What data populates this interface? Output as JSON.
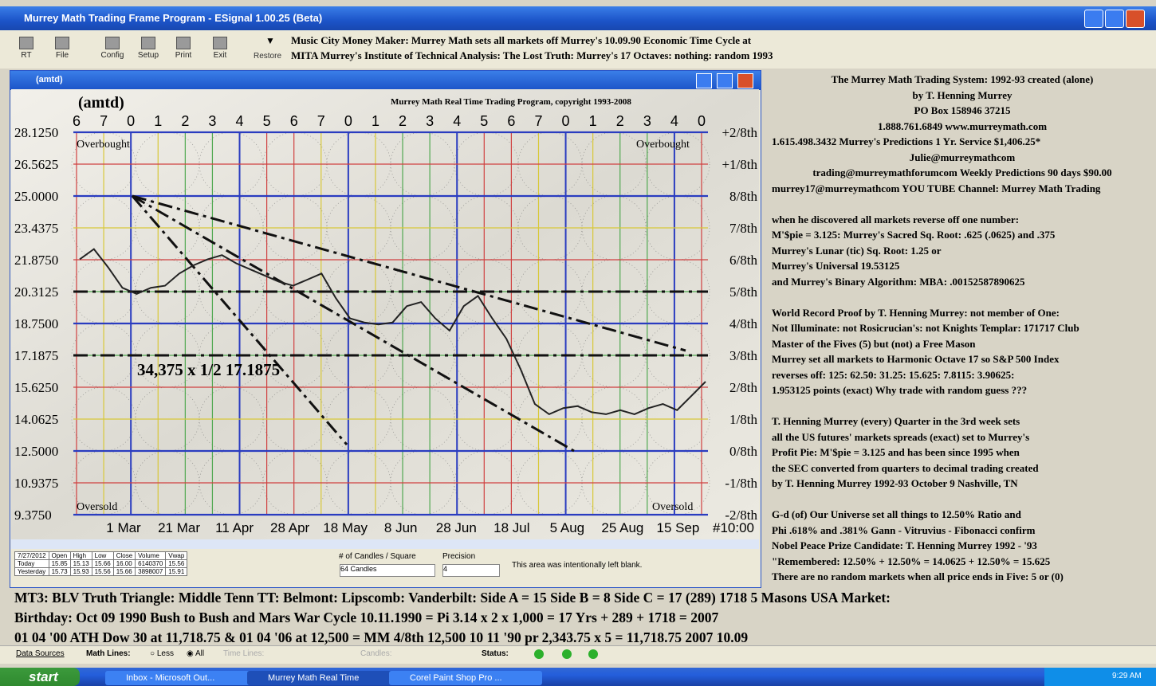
{
  "window": {
    "title": "Murrey Math Trading Frame Program - ESignal 1.00.25 (Beta)"
  },
  "toolbar": {
    "buttons": [
      "RT",
      "File",
      "Config",
      "Setup",
      "Print",
      "Exit"
    ],
    "restore": "Restore",
    "lines": [
      "Music City Money Maker: Murrey Math sets all markets off Murrey's 10.09.90 Economic Time Cycle at",
      "MITA Murrey's Institute of Technical Analysis: The Lost Truth:  Murrey's 17 Octaves: nothing: random 1993"
    ]
  },
  "chart_window": {
    "title": "(amtd)",
    "symbol": "(amtd)",
    "copyright": "Murrey Math Real Time Trading Program, copyright 1993-2008",
    "overbought": "Overbought",
    "oversold": "Oversold",
    "annotation": "34,375 x 1/2 17.1875",
    "cycle_digits": [
      6,
      7,
      0,
      1,
      2,
      3,
      4,
      5,
      6,
      7,
      0,
      1,
      2,
      3,
      4,
      5,
      6,
      7,
      0,
      1,
      2,
      3,
      4,
      0
    ],
    "dates": [
      "1 Mar",
      "21 Mar",
      "11 Apr",
      "28 Apr",
      "18 May",
      "8 Jun",
      "28 Jun",
      "18 Jul",
      "5 Aug",
      "25 Aug",
      "15 Sep",
      "#10:00"
    ],
    "levels": [
      {
        "value": 28.125,
        "label": "28.1250",
        "octave": "+2/8th",
        "color": "#2a3cc0"
      },
      {
        "value": 26.5625,
        "label": "26.5625",
        "octave": "+1/8th",
        "color": "#d04040"
      },
      {
        "value": 25.0,
        "label": "25.0000",
        "octave": "8/8th",
        "color": "#2a3cc0"
      },
      {
        "value": 23.4375,
        "label": "23.4375",
        "octave": "7/8th",
        "color": "#d8c838"
      },
      {
        "value": 21.875,
        "label": "21.8750",
        "octave": "6/8th",
        "color": "#d04040"
      },
      {
        "value": 20.3125,
        "label": "20.3125",
        "octave": "5/8th",
        "color": "#50a850"
      },
      {
        "value": 18.75,
        "label": "18.7500",
        "octave": "4/8th",
        "color": "#2a3cc0"
      },
      {
        "value": 17.1875,
        "label": "17.1875",
        "octave": "3/8th",
        "color": "#50a850"
      },
      {
        "value": 15.625,
        "label": "15.6250",
        "octave": "2/8th",
        "color": "#d04040"
      },
      {
        "value": 14.0625,
        "label": "14.0625",
        "octave": "1/8th",
        "color": "#d8c838"
      },
      {
        "value": 12.5,
        "label": "12.5000",
        "octave": "0/8th",
        "color": "#2a3cc0"
      },
      {
        "value": 10.9375,
        "label": "10.9375",
        "octave": "-1/8th",
        "color": "#d04040"
      },
      {
        "value": 9.375,
        "label": "9.3750",
        "octave": "-2/8th",
        "color": "#2a3cc0"
      }
    ],
    "price_series": [
      21.9,
      22.4,
      21.5,
      20.5,
      20.2,
      20.5,
      20.6,
      21.2,
      21.6,
      21.9,
      22.1,
      21.7,
      21.4,
      21.1,
      20.8,
      20.6,
      20.9,
      21.2,
      20.0,
      19.0,
      18.8,
      18.7,
      18.8,
      19.6,
      19.8,
      19.0,
      18.4,
      19.6,
      20.1,
      19.0,
      18.0,
      16.5,
      14.8,
      14.3,
      14.6,
      14.7,
      14.4,
      14.3,
      14.5,
      14.3,
      14.6,
      14.8,
      14.5,
      15.2,
      15.9
    ]
  },
  "quote_grid": {
    "header": [
      "7/27/2012",
      "Open",
      "High",
      "Low",
      "Close",
      "Volume",
      "Vwap"
    ],
    "rows": [
      [
        "Today",
        "15.85",
        "15.13",
        "15.66",
        "16.00",
        "6140370",
        "15.56"
      ],
      [
        "Yesterday",
        "15.73",
        "15.93",
        "15.56",
        "15.66",
        "3898007",
        "15.91"
      ]
    ],
    "candles_label": "# of Candles / Square",
    "candles_value": "64 Candles",
    "precision_label": "Precision",
    "precision_value": "4",
    "blank_note": "This area was intentionally left blank."
  },
  "info_panel": {
    "paragraphs": [
      [
        "The Murrey Math Trading System: 1992-93 created (alone)",
        "by T. Henning Murrey",
        "PO Box 158946    37215",
        "1.888.761.6849 www.murreymath.com",
        "1.615.498.3432 Murrey's Predictions 1 Yr. Service $1,406.25*",
        "Julie@murreymathcom",
        "trading@murreymathforumcom   Weekly Predictions 90 days $90.00",
        "murrey17@murreymathcom  YOU TUBE Channel: Murrey Math Trading"
      ],
      [
        "when he discovered all markets reverse off one number:",
        "M'$pie = 3.125: Murrey's Sacred Sq. Root: .625 (.0625) and .375",
        "Murrey's Lunar (tic) Sq. Root: 1.25 or",
        "Murrey's Universal 19.53125",
        "and Murrey's Binary Algorithm: MBA: .00152587890625"
      ],
      [
        "World Record Proof by T. Henning Murrey: not member of One:",
        "Not Illuminate: not Rosicrucian's: not Knights Templar: 171717 Club",
        "Master of the Fives (5) but (not) a Free Mason",
        "Murrey set all markets to Harmonic Octave 17 so S&P 500 Index",
        "reverses off: 125: 62.50: 31.25: 15.625: 7.8115: 3.90625:",
        "1.953125 points (exact) Why trade with random guess ???"
      ],
      [
        "T. Henning Murrey (every) Quarter in the 3rd week sets",
        "all the US futures' markets spreads (exact) set to Murrey's",
        "Profit Pie: M'$pie = 3.125 and has been since 1995 when",
        "the SEC converted from quarters to decimal trading created",
        "by T. Henning Murrey 1992-93 October 9 Nashville, TN"
      ],
      [
        "G-d (of) Our Universe set all things to 12.50% Ratio and",
        "Phi .618% and .381%   Gann - Vitruvius - Fibonacci confirm",
        "Nobel Peace Prize Candidate: T. Henning Murrey 1992 - '93",
        "\"Remembered: 12.50% + 12.50% = 14.0625 + 12.50% = 15.625",
        "There are no random markets when all price ends in Five: 5 or (0)"
      ]
    ]
  },
  "bottom_text": [
    "MT3: BLV Truth Triangle: Middle Tenn TT: Belmont: Lipscomb: Vanderbilt:  Side A = 15 Side B = 8 Side C = 17 (289) 1718 5 Masons USA Market:",
    "Birthday: Oct 09 1990 Bush to Bush and Mars War Cycle 10.11.1990 = Pi 3.14 x 2 x 1,000 = 17 Yrs + 289 + 1718 = 2007",
    "01 04 '00 ATH Dow 30 at 11,718.75 & 01 04 '06 at 12,500 = MM 4/8th 12,500 10 11 '90 pr 2,343.75 x 5 = 11,718.75 2007 10.09"
  ],
  "status_bar": {
    "data_sources": "Data Sources",
    "math_lines": "Math Lines:",
    "less": "Less",
    "all": "All",
    "time_lines": "Time Lines:",
    "candles": "Candles:",
    "status": "Status:"
  },
  "taskbar": {
    "start": "start",
    "items": [
      "Inbox - Microsoft Out...",
      "Murrey Math Real Time",
      "Corel Paint Shop Pro ..."
    ],
    "clock": "9:29 AM"
  }
}
